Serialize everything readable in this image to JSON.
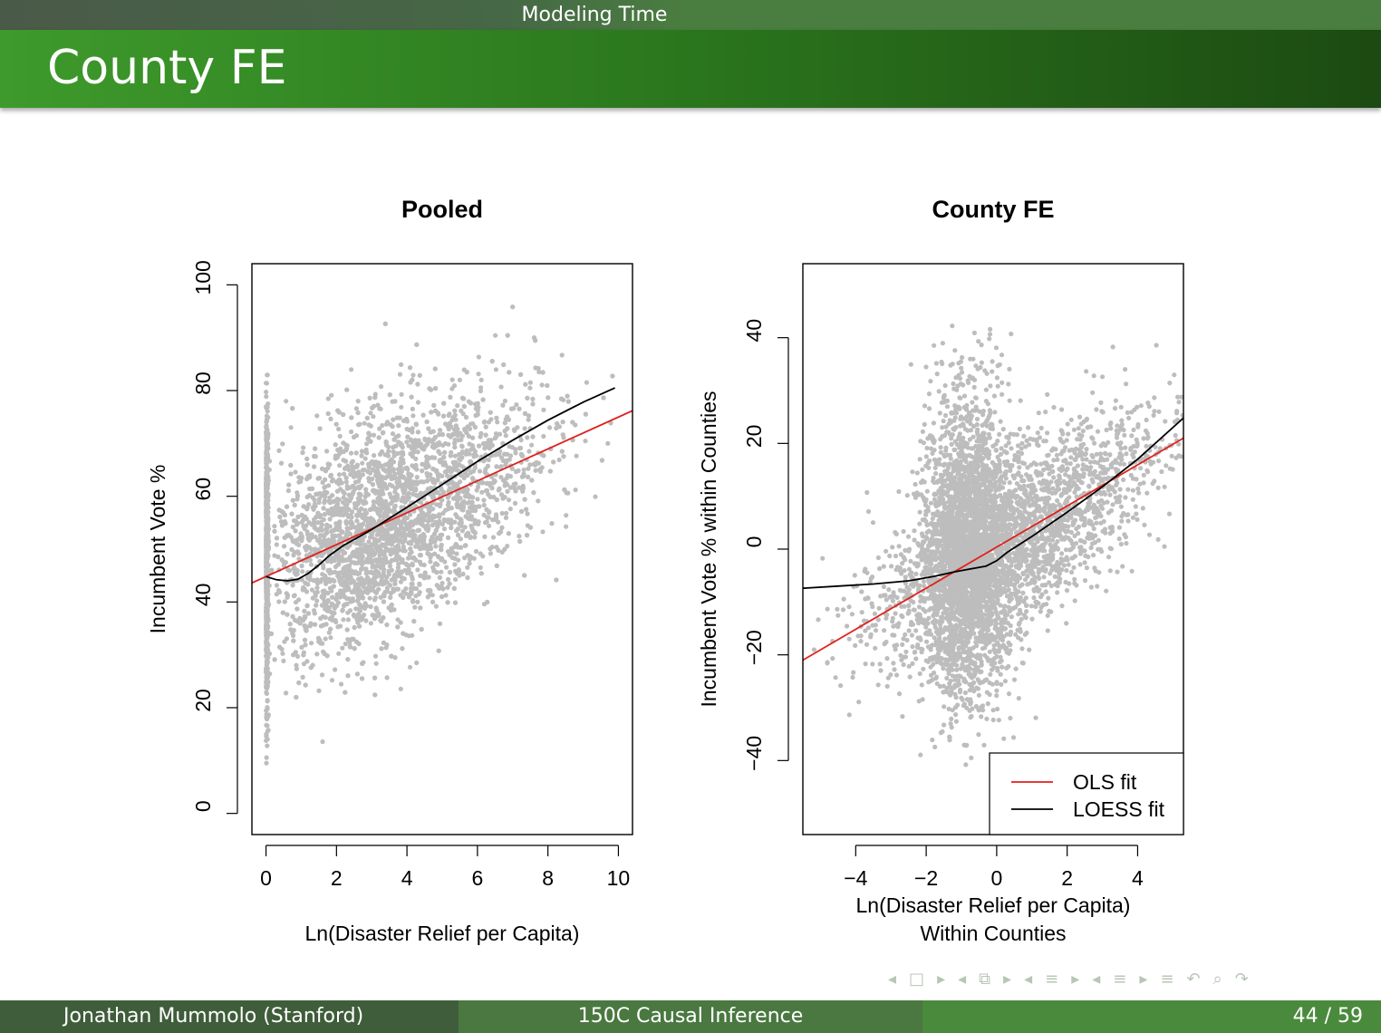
{
  "header": {
    "section": "Modeling Time",
    "title": "County FE"
  },
  "footer": {
    "author": "Jonathan Mummolo  (Stanford)",
    "course": "150C Causal Inference",
    "page": "44 / 59"
  },
  "nav_icons": [
    "arrow-left-icon",
    "frame-icon",
    "arrow-right-icon",
    "arrow-left-icon",
    "subsection-icon",
    "arrow-right-icon",
    "arrow-left-icon",
    "section-icon",
    "arrow-right-icon",
    "arrow-left-icon",
    "section-icon",
    "arrow-right-icon",
    "align-icon",
    "undo-icon",
    "search-icon",
    "redo-icon"
  ],
  "colors": {
    "points": "#bdbdbd",
    "ols": "#e0201c",
    "loess": "#000000"
  },
  "chart_data": [
    {
      "type": "scatter",
      "title": "Pooled",
      "xlabel": "Ln(Disaster Relief per Capita)",
      "ylabel": "Incumbent Vote %",
      "xlim": [
        -0.4,
        10.4
      ],
      "ylim": [
        -4,
        104
      ],
      "xticks": [
        0,
        2,
        4,
        6,
        8,
        10
      ],
      "yticks": [
        0,
        20,
        40,
        60,
        80,
        100
      ],
      "xtick_labels": [
        "0",
        "2",
        "4",
        "6",
        "8",
        "10"
      ],
      "ytick_labels": [
        "0",
        "20",
        "40",
        "60",
        "80",
        "100"
      ],
      "grid": false,
      "series": [
        {
          "name": "OLS fit",
          "kind": "line",
          "x": [
            -0.4,
            10.4
          ],
          "y": [
            43.6,
            76.2
          ]
        },
        {
          "name": "LOESS fit",
          "kind": "line",
          "x": [
            0,
            0.3,
            0.6,
            0.9,
            1.2,
            1.5,
            1.8,
            2.2,
            2.6,
            3,
            4,
            5,
            6,
            7,
            8,
            9,
            9.9
          ],
          "y": [
            44.8,
            44.2,
            44.0,
            44.3,
            45.4,
            47.0,
            48.8,
            50.7,
            52.2,
            53.7,
            57.9,
            62.2,
            66.6,
            70.6,
            74.4,
            77.8,
            80.5
          ]
        }
      ]
    },
    {
      "type": "scatter",
      "title": "County FE",
      "xlabel": "Ln(Disaster Relief per Capita)",
      "xlabel2": "Within Counties",
      "ylabel": "Incumbent Vote % within Counties",
      "xlim": [
        -5.5,
        5.3
      ],
      "ylim": [
        -54,
        54
      ],
      "xticks": [
        -4,
        -2,
        0,
        2,
        4
      ],
      "yticks": [
        -40,
        -20,
        0,
        20,
        40
      ],
      "xtick_labels": [
        "−4",
        "−2",
        "0",
        "2",
        "4"
      ],
      "ytick_labels": [
        "−40",
        "−20",
        "0",
        "20",
        "40"
      ],
      "grid": false,
      "legend_position": "bottom-right",
      "series": [
        {
          "name": "OLS fit",
          "kind": "line",
          "x": [
            -5.5,
            5.3
          ],
          "y": [
            -21.0,
            21.0
          ]
        },
        {
          "name": "LOESS fit",
          "kind": "line",
          "x": [
            -5.5,
            -4.5,
            -3.5,
            -2.5,
            -1.8,
            -1.2,
            -0.8,
            -0.3,
            0,
            0.3,
            1,
            2,
            3,
            4,
            5.3
          ],
          "y": [
            -7.4,
            -7.0,
            -6.6,
            -6.0,
            -5.2,
            -4.3,
            -3.8,
            -3.2,
            -2.2,
            -0.6,
            2.4,
            7.0,
            11.8,
            17.0,
            24.8
          ]
        }
      ]
    }
  ]
}
